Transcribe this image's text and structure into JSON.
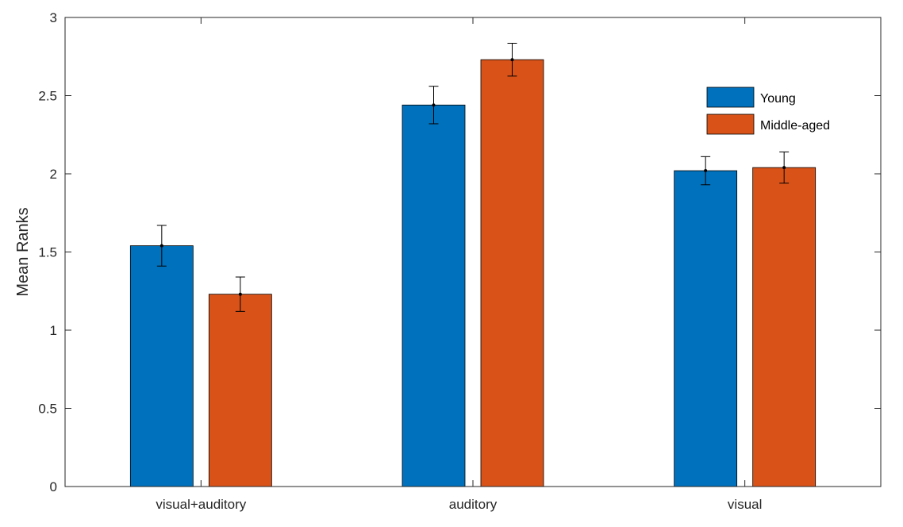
{
  "chart_data": {
    "type": "bar",
    "title": "",
    "xlabel": "",
    "ylabel": "Mean Ranks",
    "ylim": [
      0,
      3
    ],
    "yticks": [
      "0",
      "0.5",
      "1",
      "1.5",
      "2",
      "2.5",
      "3"
    ],
    "categories": [
      "visual+auditory",
      "auditory",
      "visual"
    ],
    "series": [
      {
        "name": "Young",
        "color": "#0072BD",
        "values": [
          1.54,
          2.44,
          2.02
        ],
        "error": [
          0.13,
          0.12,
          0.09
        ]
      },
      {
        "name": "Middle-aged",
        "color": "#D95319",
        "values": [
          1.23,
          2.73,
          2.04
        ],
        "error": [
          0.11,
          0.105,
          0.1
        ]
      }
    ],
    "legend_position": "top-right",
    "grid": false
  }
}
